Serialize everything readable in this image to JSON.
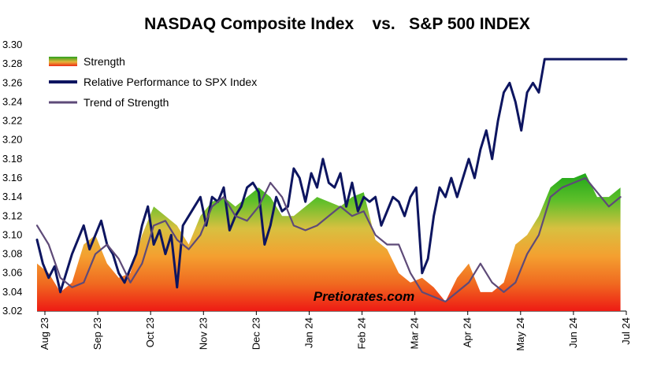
{
  "chart_data": {
    "type": "area+line",
    "title": "NASDAQ Composite Index    vs.   S&P 500 INDEX",
    "watermark": "Pretiorates.com",
    "ylim": [
      3.02,
      3.3
    ],
    "yticks": [
      "3.02",
      "3.04",
      "3.06",
      "3.08",
      "3.10",
      "3.12",
      "3.14",
      "3.16",
      "3.18",
      "3.20",
      "3.22",
      "3.24",
      "3.26",
      "3.28",
      "3.30"
    ],
    "xtick_labels": [
      "Aug 23",
      "Sep 23",
      "Oct 23",
      "Nov 23",
      "Dec 23",
      "Jan 24",
      "Feb 24",
      "Mar 24",
      "Apr 24",
      "May 24",
      "Jun 24",
      "Jul 24"
    ],
    "grid": false,
    "legend_placement": "top-left",
    "legend": [
      {
        "name": "Strength",
        "kind": "gradient-area"
      },
      {
        "name": "Relative Performance to SPX Index",
        "kind": "line",
        "color": "#0d1560"
      },
      {
        "name": "Trend of Strength",
        "kind": "line",
        "color": "#5e4a78"
      }
    ],
    "series": [
      {
        "name": "Relative Performance to SPX Index",
        "color": "#0d1560",
        "x": [
          0,
          0.5,
          1,
          1.5,
          2,
          2.5,
          3,
          3.5,
          4,
          4.5,
          5,
          5.5,
          6,
          6.5,
          7,
          7.5,
          8,
          8.5,
          9,
          9.5,
          10,
          10.5,
          11,
          11.5,
          12,
          12.5,
          13,
          13.5,
          14,
          14.5,
          15,
          15.5,
          16,
          16.5,
          17,
          17.5,
          18,
          18.5,
          19,
          19.5,
          20,
          20.5,
          21,
          21.5,
          22,
          22.5,
          23,
          23.5,
          24,
          24.5,
          25,
          25.5,
          26,
          26.5,
          27,
          27.5,
          28,
          28.5,
          29,
          29.5,
          30,
          30.5,
          31,
          31.5,
          32,
          32.5,
          33,
          33.5,
          34,
          34.5,
          35,
          35.5,
          36,
          36.5,
          37,
          37.5,
          38,
          38.5,
          39,
          39.5,
          40,
          40.5,
          41,
          41.5,
          42,
          42.5,
          43,
          43.5,
          44,
          44.5,
          45,
          45.5,
          46,
          46.5,
          47,
          47.5,
          48,
          48.5,
          49,
          49.5,
          50,
          50.5
        ],
        "values": [
          3.095,
          3.07,
          3.055,
          3.067,
          3.04,
          3.06,
          3.08,
          3.095,
          3.11,
          3.085,
          3.1,
          3.115,
          3.09,
          3.08,
          3.06,
          3.05,
          3.065,
          3.08,
          3.11,
          3.13,
          3.09,
          3.105,
          3.08,
          3.1,
          3.045,
          3.11,
          3.12,
          3.13,
          3.14,
          3.11,
          3.14,
          3.135,
          3.15,
          3.105,
          3.12,
          3.13,
          3.15,
          3.155,
          3.145,
          3.09,
          3.11,
          3.14,
          3.125,
          3.13,
          3.17,
          3.16,
          3.135,
          3.165,
          3.15,
          3.18,
          3.155,
          3.15,
          3.165,
          3.13,
          3.155,
          3.125,
          3.14,
          3.135,
          3.14,
          3.11,
          3.125,
          3.14,
          3.135,
          3.12,
          3.14,
          3.15,
          3.06,
          3.075,
          3.12,
          3.15,
          3.14,
          3.16,
          3.14,
          3.16,
          3.18,
          3.16,
          3.19,
          3.21,
          3.18,
          3.22,
          3.25,
          3.26,
          3.24,
          3.21,
          3.25,
          3.26,
          3.25,
          3.285,
          3.285,
          3.285,
          3.285,
          3.285,
          3.285,
          3.285,
          3.285,
          3.285,
          3.285,
          3.285,
          3.285,
          3.285,
          3.285,
          3.285
        ]
      },
      {
        "name": "Trend of Strength",
        "color": "#5e4a78",
        "x": [
          0,
          1,
          2,
          3,
          4,
          5,
          6,
          7,
          8,
          9,
          10,
          11,
          12,
          13,
          14,
          15,
          16,
          17,
          18,
          19,
          20,
          21,
          22,
          23,
          24,
          25,
          26,
          27,
          28,
          29,
          30,
          31,
          32,
          33,
          34,
          35,
          36,
          37,
          38,
          39,
          40,
          41,
          42,
          43,
          44,
          45,
          46,
          47,
          48,
          49,
          50
        ],
        "values": [
          3.11,
          3.09,
          3.055,
          3.045,
          3.05,
          3.08,
          3.09,
          3.075,
          3.05,
          3.07,
          3.11,
          3.115,
          3.095,
          3.085,
          3.1,
          3.13,
          3.14,
          3.12,
          3.115,
          3.13,
          3.155,
          3.14,
          3.11,
          3.105,
          3.11,
          3.12,
          3.13,
          3.12,
          3.125,
          3.1,
          3.09,
          3.09,
          3.06,
          3.04,
          3.035,
          3.03,
          3.04,
          3.05,
          3.07,
          3.05,
          3.04,
          3.05,
          3.08,
          3.1,
          3.14,
          3.15,
          3.155,
          3.16,
          3.145,
          3.13,
          3.14
        ]
      },
      {
        "name": "Strength",
        "kind": "area",
        "x": [
          0,
          1,
          2,
          3,
          4,
          5,
          6,
          7,
          8,
          9,
          10,
          11,
          12,
          13,
          14,
          15,
          16,
          17,
          18,
          19,
          20,
          21,
          22,
          23,
          24,
          25,
          26,
          27,
          28,
          29,
          30,
          31,
          32,
          33,
          34,
          35,
          36,
          37,
          38,
          39,
          40,
          41,
          42,
          43,
          44,
          45,
          46,
          47,
          48,
          49,
          50
        ],
        "values": [
          3.07,
          3.06,
          3.04,
          3.05,
          3.09,
          3.1,
          3.07,
          3.055,
          3.06,
          3.1,
          3.13,
          3.12,
          3.11,
          3.09,
          3.12,
          3.135,
          3.14,
          3.13,
          3.14,
          3.15,
          3.14,
          3.12,
          3.12,
          3.13,
          3.14,
          3.135,
          3.13,
          3.14,
          3.145,
          3.095,
          3.085,
          3.06,
          3.05,
          3.055,
          3.045,
          3.03,
          3.055,
          3.07,
          3.04,
          3.04,
          3.05,
          3.09,
          3.1,
          3.12,
          3.15,
          3.16,
          3.16,
          3.165,
          3.14,
          3.14,
          3.15
        ]
      }
    ]
  }
}
